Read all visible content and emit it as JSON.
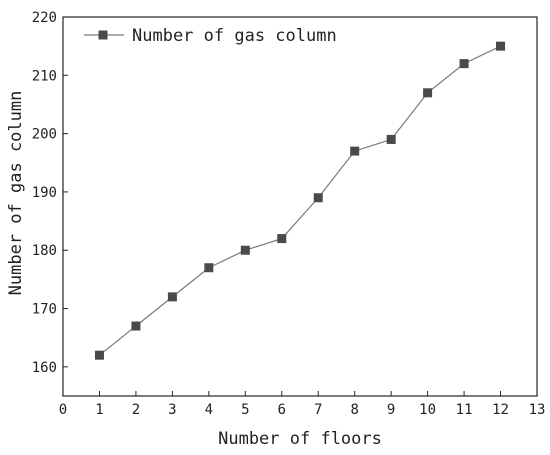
{
  "chart_data": {
    "type": "line",
    "x": [
      1,
      2,
      3,
      4,
      5,
      6,
      7,
      8,
      9,
      10,
      11,
      12
    ],
    "series": [
      {
        "name": "Number of gas column",
        "values": [
          162,
          167,
          172,
          177,
          180,
          182,
          189,
          197,
          199,
          207,
          212,
          215
        ]
      }
    ],
    "xlabel": "Number of floors",
    "ylabel": "Number of gas column",
    "xlim": [
      0,
      13
    ],
    "ylim": [
      155,
      220
    ],
    "xticks": [
      "0",
      "1",
      "2",
      "3",
      "4",
      "5",
      "6",
      "7",
      "8",
      "9",
      "10",
      "11",
      "12",
      "13"
    ],
    "yticks": [
      "160",
      "170",
      "180",
      "190",
      "200",
      "210",
      "220"
    ],
    "grid": false,
    "legend_position": "top-left",
    "colors": {
      "line": "#7a7a7a",
      "marker": "#4a4a4a",
      "axis": "#222222"
    }
  }
}
